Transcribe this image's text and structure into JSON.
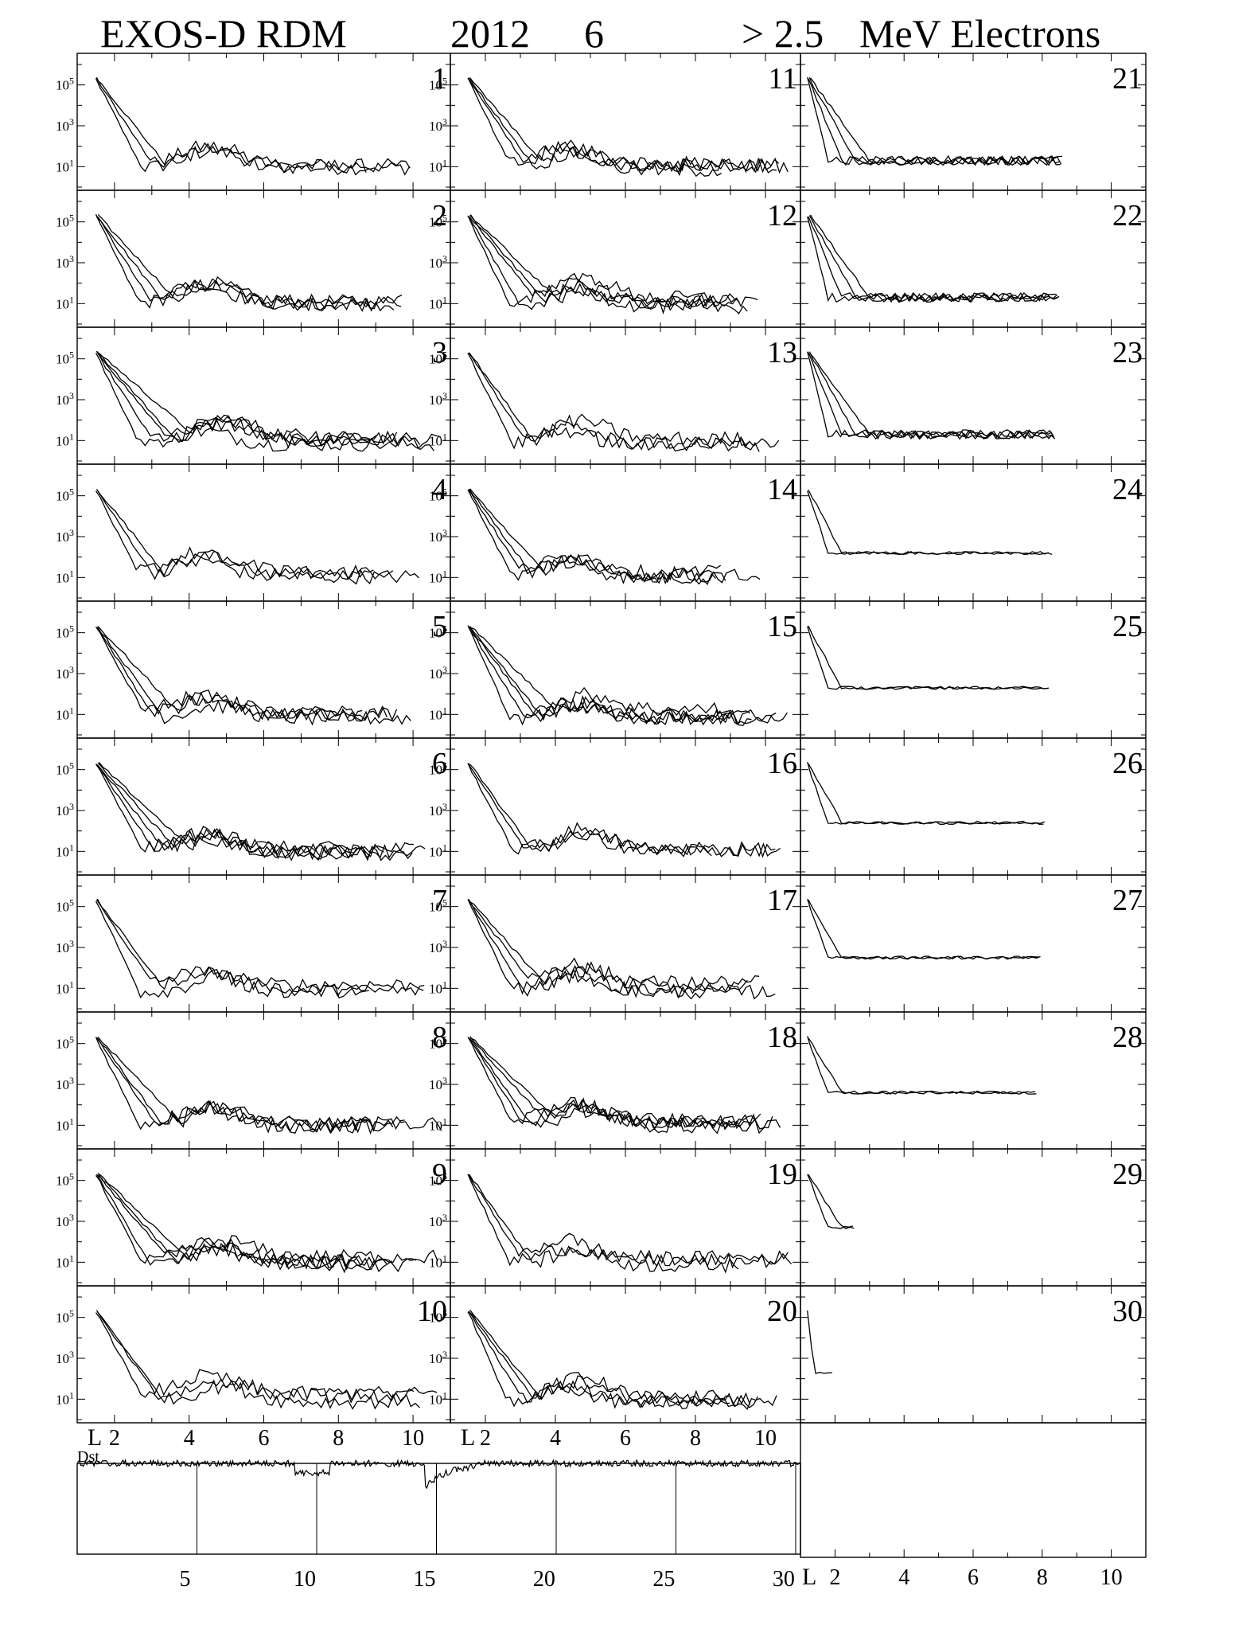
{
  "title": {
    "instrument": "EXOS-D RDM",
    "year": "2012",
    "month": "6",
    "threshold": "> 2.5",
    "particle": "MeV Electrons"
  },
  "chart_data": {
    "type": "line",
    "xlabel": "L",
    "x_ticks": [
      "2",
      "4",
      "6",
      "8",
      "10"
    ],
    "y_ticks": [
      {
        "base": "10",
        "exp": "5"
      },
      {
        "base": "10",
        "exp": "3"
      },
      {
        "base": "10",
        "exp": "1"
      }
    ],
    "y_scale": "log",
    "x_range": [
      1,
      11
    ],
    "panel_labels": [
      "1",
      "2",
      "3",
      "4",
      "5",
      "6",
      "7",
      "8",
      "9",
      "10",
      "11",
      "12",
      "13",
      "14",
      "15",
      "16",
      "17",
      "18",
      "19",
      "20",
      "21",
      "22",
      "23",
      "24",
      "25",
      "26",
      "27",
      "28",
      "29",
      "30"
    ],
    "dst_label": "Dst",
    "dst_x_ticks": [
      "5",
      "10",
      "15",
      "20",
      "25",
      "30"
    ]
  },
  "colors": {
    "line": "#000000",
    "background": "#ffffff"
  }
}
